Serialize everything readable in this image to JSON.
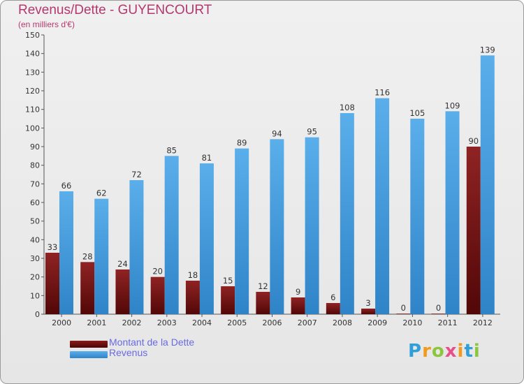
{
  "chart_data": {
    "type": "bar",
    "title": "Revenus/Dette - GUYENCOURT",
    "subtitle": "(en milliers d'€)",
    "categories": [
      "2000",
      "2001",
      "2002",
      "2003",
      "2004",
      "2005",
      "2006",
      "2007",
      "2008",
      "2009",
      "2010",
      "2011",
      "2012"
    ],
    "series": [
      {
        "name": "Montant de la Dette",
        "color": "#6b1010",
        "values": [
          33,
          28,
          24,
          20,
          18,
          15,
          12,
          9,
          6,
          3,
          0,
          0,
          90
        ]
      },
      {
        "name": "Revenus",
        "color": "#4a9fe0",
        "values": [
          66,
          62,
          72,
          85,
          81,
          89,
          94,
          95,
          108,
          116,
          105,
          109,
          139
        ]
      }
    ],
    "ylim": [
      0,
      150
    ],
    "yticks": [
      0,
      10,
      20,
      30,
      40,
      50,
      60,
      70,
      80,
      90,
      100,
      110,
      120,
      130,
      140,
      150
    ],
    "grid": false,
    "legend": "bottom-left"
  },
  "logo": {
    "letters": [
      "P",
      "r",
      "o",
      "x",
      "i",
      "t",
      "i"
    ],
    "colors": [
      "#2f9fd8",
      "#f39a1c",
      "#8cc63f",
      "#e94e8c",
      "#f39a1c",
      "#2f9fd8",
      "#8cc63f"
    ]
  }
}
